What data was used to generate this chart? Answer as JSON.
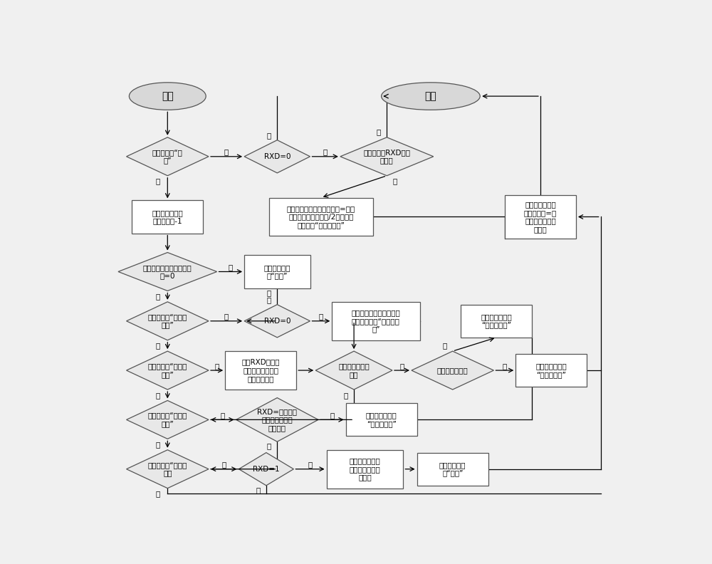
{
  "bg_color": "#f0f0f0",
  "box_fc": "#ffffff",
  "box_ec": "#555555",
  "diamond_fc": "#e8e8e8",
  "diamond_ec": "#555555",
  "oval_fc": "#d8d8d8",
  "oval_ec": "#555555",
  "lw": 0.9,
  "fs": 7.5,
  "fig_w": 10.0,
  "fig_h": 7.92,
  "dpi": 100,
  "start_label": "开始",
  "end_label": "结束",
  "d1_text": "接收状态为“空\n闲”",
  "d2_text": "RXD=0",
  "d3_text": "上次中断的RXD值为\n高电平",
  "b1_text": "接收定时器中断\n次数计数器-1",
  "b2_text": "接收定时器中断次数计数器=接收\n中断次数寄存器的值/2，设置接\n收状态为“接收起始位”",
  "b3_text": "接收定时器中断\n次数计数器=接\n收中断次数寄存\n器的值",
  "d4_text": "接收定时器中断次数计数\n器=0",
  "b4_text": "设置接收状态\n为“空闲”",
  "d5_text": "接收状态为“接收起\n始位”",
  "d6_text": "RXD=0",
  "b5_text": "接收到有效地起始位，设\n置接收状态为“接收数据\n位”",
  "b6_text": "设置接收状态为\n“接收停止位”",
  "d7_text": "接收状态为“接收数\n据位”",
  "b7_text": "读取RXD引脚的\n值，并把该值保存\n到接收移位中",
  "d8_text": "个数据字节接收\n完成",
  "d9_text": "需要接收校验位",
  "b8_text": "设置接收状态为\n“接收校验位”",
  "d10_text": "接收状态为“接收校\n验位”",
  "d11_text": "RXD=根据前面\n接收字节计算出\n的校验值",
  "b9_text": "设置接收状态为\n“接收停止位”",
  "d12_text": "接收状态为“接收停\n止位",
  "d13_text": "RXD=1",
  "b10_text": "把接收到的数据\n字节加入到环形\n缓冲中",
  "b11_text": "设置接收状态\n为“空闲”",
  "yes": "是",
  "no": "否"
}
